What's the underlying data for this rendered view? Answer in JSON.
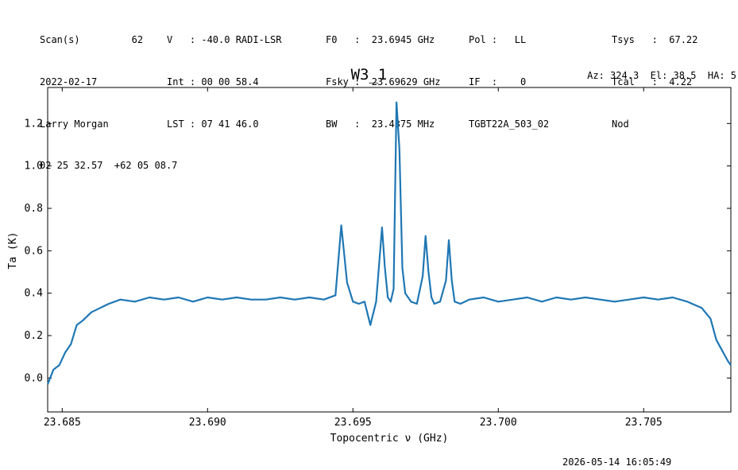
{
  "header": {
    "col1": [
      "Scan(s)         62",
      "2022-02-17",
      "Larry Morgan",
      "02 25 32.57  +62 05 08.7"
    ],
    "col2": [
      "V   : -40.0 RADI-LSR",
      "Int : 00 00 58.4",
      "LST : 07 41 46.0"
    ],
    "col3": [
      "F0   :  23.6945 GHz",
      "Fsky :  23.69629 GHz",
      "BW   :  23.4375 MHz"
    ],
    "col4": [
      "Pol :   LL",
      "IF  :    0",
      "TGBT22A_503_02"
    ],
    "col5": [
      "Tsys   :  67.22",
      "Tcal   :  4.22",
      "Nod"
    ],
    "right": "Az: 324.3  El: 38.5  HA: 5"
  },
  "footer": {
    "timestamp": "2026-05-14 16:05:49"
  },
  "chart_data": {
    "type": "line",
    "title": "W3_1",
    "xlabel": "Topocentric ν (GHz)",
    "ylabel": "Ta (K)",
    "xlim": [
      23.6845,
      23.708
    ],
    "ylim": [
      -0.16,
      1.37
    ],
    "xticks": [
      "23.685",
      "23.690",
      "23.695",
      "23.700",
      "23.705"
    ],
    "xtick_values": [
      23.685,
      23.69,
      23.695,
      23.7,
      23.705
    ],
    "yticks": [
      "0.0",
      "0.2",
      "0.4",
      "0.6",
      "0.8",
      "1.0",
      "1.2"
    ],
    "ytick_values": [
      0.0,
      0.2,
      0.4,
      0.6,
      0.8,
      1.0,
      1.2
    ],
    "line_color": "#1f77b4",
    "series": [
      {
        "name": "",
        "x": [
          23.6845,
          23.6847,
          23.6849,
          23.6851,
          23.6853,
          23.6855,
          23.6857,
          23.686,
          23.6863,
          23.6866,
          23.687,
          23.6875,
          23.688,
          23.6885,
          23.689,
          23.6895,
          23.69,
          23.6905,
          23.691,
          23.6915,
          23.692,
          23.6925,
          23.693,
          23.6935,
          23.694,
          23.6944,
          23.6946,
          23.6948,
          23.695,
          23.6952,
          23.6954,
          23.6956,
          23.6958,
          23.696,
          23.6961,
          23.6962,
          23.6963,
          23.6964,
          23.6965,
          23.6966,
          23.6967,
          23.6968,
          23.697,
          23.6972,
          23.6974,
          23.6975,
          23.6976,
          23.6977,
          23.6978,
          23.698,
          23.6982,
          23.6983,
          23.6984,
          23.6985,
          23.6987,
          23.699,
          23.6995,
          23.7,
          23.7005,
          23.701,
          23.7015,
          23.702,
          23.7025,
          23.703,
          23.7035,
          23.704,
          23.7045,
          23.705,
          23.7055,
          23.706,
          23.7065,
          23.707,
          23.7073,
          23.7075,
          23.7077,
          23.7079,
          23.708
        ],
        "y": [
          -0.03,
          0.04,
          0.06,
          0.12,
          0.16,
          0.25,
          0.27,
          0.31,
          0.33,
          0.35,
          0.37,
          0.36,
          0.38,
          0.37,
          0.38,
          0.36,
          0.38,
          0.37,
          0.38,
          0.37,
          0.37,
          0.38,
          0.37,
          0.38,
          0.37,
          0.39,
          0.72,
          0.45,
          0.36,
          0.35,
          0.36,
          0.25,
          0.36,
          0.71,
          0.52,
          0.38,
          0.36,
          0.42,
          1.3,
          1.08,
          0.52,
          0.4,
          0.36,
          0.35,
          0.48,
          0.67,
          0.5,
          0.38,
          0.35,
          0.36,
          0.46,
          0.65,
          0.46,
          0.36,
          0.35,
          0.37,
          0.38,
          0.36,
          0.37,
          0.38,
          0.36,
          0.38,
          0.37,
          0.38,
          0.37,
          0.36,
          0.37,
          0.38,
          0.37,
          0.38,
          0.36,
          0.33,
          0.28,
          0.18,
          0.13,
          0.08,
          0.06
        ]
      }
    ]
  }
}
